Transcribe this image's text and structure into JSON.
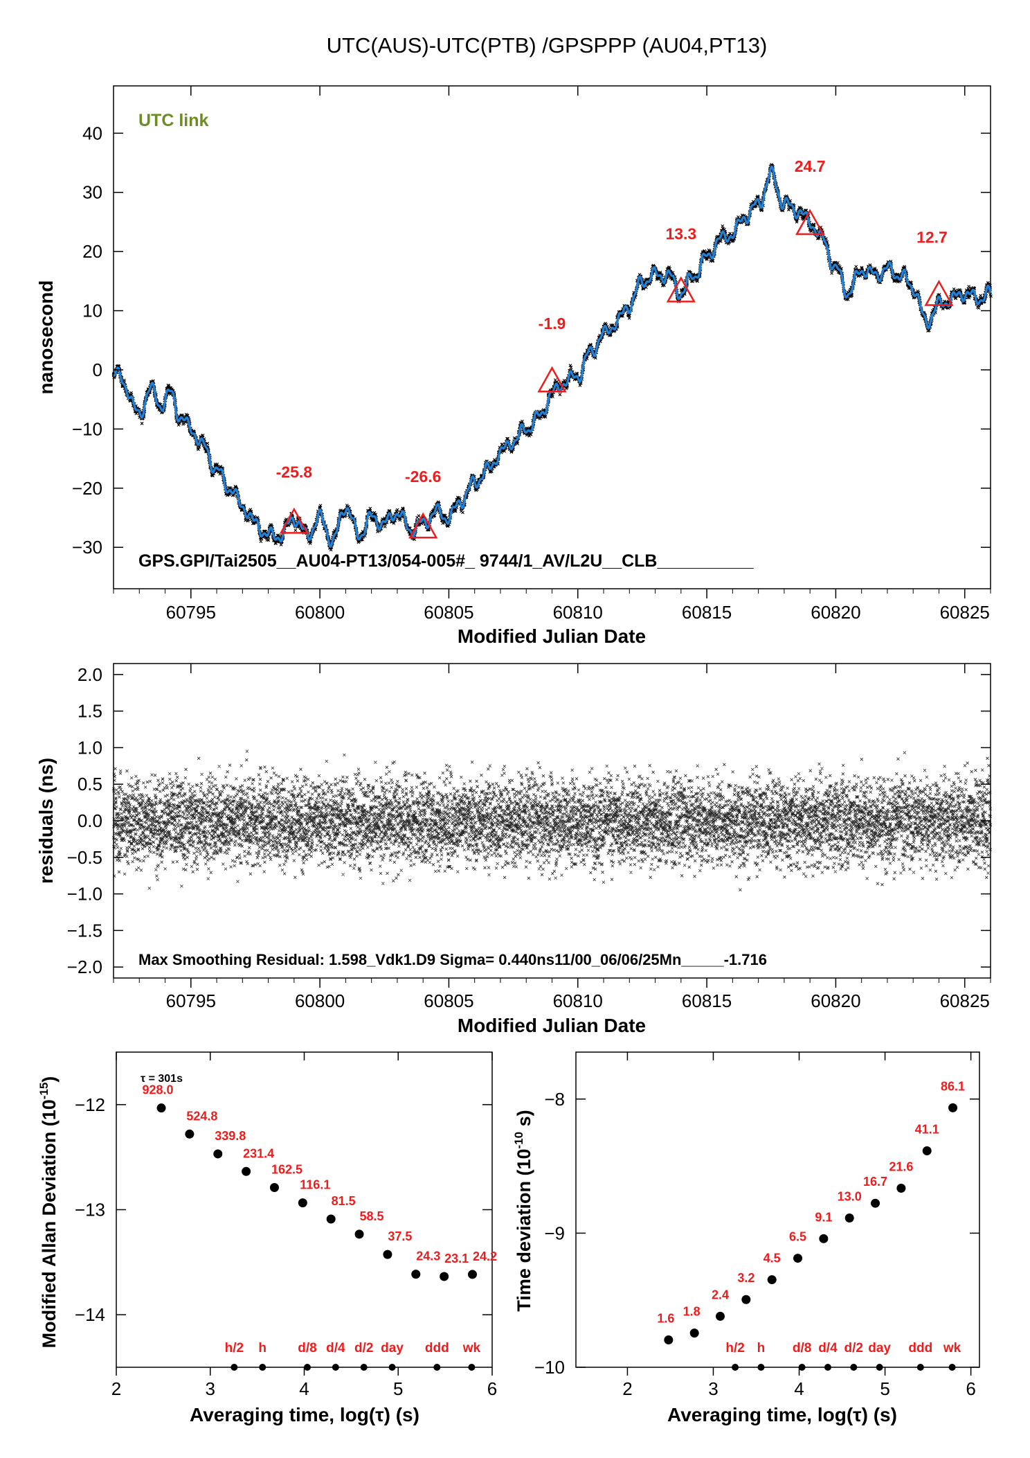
{
  "page_title": "UTC(AUS)-UTC(PTB)  /GPSPPP  (AU04,PT13)",
  "colors": {
    "fit_line": "#1f82d8",
    "raw_points": "#000000",
    "highlight": "#ee1c1c",
    "link_label": "#6a8e22"
  },
  "chart_data": [
    {
      "type": "line",
      "panel": "time-series",
      "xlabel": "Modified Julian Date",
      "ylabel": "nanosecond",
      "xlim": [
        60792,
        60826
      ],
      "ylim": [
        -37,
        48
      ],
      "xticks": [
        60795,
        60800,
        60805,
        60810,
        60815,
        60820,
        60825
      ],
      "yticks": [
        -30,
        -20,
        -10,
        0,
        10,
        20,
        30,
        40
      ],
      "link_label": "UTC link",
      "footer_text": "GPS.GPI/Tai2505__AU04-PT13/054-005#_  9744/1_AV/L2U__CLB__________",
      "series": [
        {
          "x": [
            60792.0,
            60792.5,
            60793.0,
            60793.4,
            60793.8,
            60794.2,
            60794.6,
            60795.0,
            60795.5,
            60796.0,
            60796.5,
            60797.0,
            60797.5,
            60798.0,
            60798.5,
            60799.0,
            60799.5,
            60800.0,
            60800.5,
            60801.0,
            60801.5,
            60802.0,
            60802.5,
            60803.0,
            60803.5,
            60804.0,
            60804.5,
            60805.0,
            60805.5,
            60806.0,
            60806.5,
            60807.0,
            60807.5,
            60808.0,
            60808.5,
            60809.0,
            60809.5,
            60810.0,
            60810.5,
            60811.0,
            60811.5,
            60812.0,
            60812.5,
            60813.0,
            60813.5,
            60814.0,
            60814.5,
            60815.0,
            60815.5,
            60816.0,
            60816.5,
            60817.0,
            60817.5,
            60818.0,
            60818.5,
            60819.0,
            60819.5,
            60820.0,
            60820.5,
            60821.0,
            60821.5,
            60822.0,
            60822.5,
            60823.0,
            60823.5,
            60824.0,
            60824.5,
            60825.0,
            60825.5,
            60826.0
          ],
          "y": [
            0,
            -3,
            -8,
            -3,
            -6,
            -4,
            -8,
            -10,
            -13,
            -17,
            -20,
            -23,
            -26,
            -28,
            -28,
            -25,
            -28,
            -25,
            -29,
            -23,
            -28,
            -25,
            -26,
            -24,
            -27,
            -26,
            -24,
            -25,
            -22,
            -19,
            -17,
            -14,
            -12,
            -10,
            -8,
            -4,
            -2,
            -1,
            3,
            6,
            8,
            11,
            15,
            16,
            16,
            13,
            16,
            19,
            22,
            23,
            26,
            28,
            33,
            28,
            27,
            25,
            22,
            17,
            13,
            17,
            16,
            17,
            16,
            14,
            8,
            11,
            12,
            13,
            12,
            13
          ]
        }
      ],
      "markers": [
        {
          "x": 60799,
          "y": -25.8,
          "label": "-25.8"
        },
        {
          "x": 60804,
          "y": -26.6,
          "label": "-26.6"
        },
        {
          "x": 60809,
          "y": -1.9,
          "label": "-1.9"
        },
        {
          "x": 60814,
          "y": 13.3,
          "label": "13.3"
        },
        {
          "x": 60819,
          "y": 24.7,
          "label": "24.7"
        },
        {
          "x": 60824,
          "y": 12.7,
          "label": "12.7"
        }
      ]
    },
    {
      "type": "scatter",
      "panel": "residuals",
      "xlabel": "Modified Julian Date",
      "ylabel": "residuals (ns)",
      "xlim": [
        60792,
        60826
      ],
      "ylim": [
        -2.15,
        2.15
      ],
      "xticks": [
        60795,
        60800,
        60805,
        60810,
        60815,
        60820,
        60825
      ],
      "yticks": [
        -2.0,
        -1.5,
        -1.0,
        -0.5,
        0.0,
        0.5,
        1.0,
        1.5,
        2.0
      ],
      "footer_text": "Max Smoothing Residual: 1.598_Vdk1.D9  Sigma= 0.440ns11/00_06/06/25Mn_____-1.716",
      "sigma_ns": 0.44,
      "max_residual_ns": 1.598
    },
    {
      "type": "scatter",
      "panel": "mod-allan-deviation",
      "xlabel": "Averaging time, log(τ) (s)",
      "ylabel": "Modified Allan Deviation (10-15)",
      "xlim": [
        2,
        6
      ],
      "ylim": [
        -14.5,
        -11.5
      ],
      "xticks": [
        2,
        3,
        4,
        5,
        6
      ],
      "yticks": [
        -14,
        -13,
        -12
      ],
      "tau_note": "τ = 301s",
      "x": [
        2.479,
        2.78,
        3.081,
        3.382,
        3.683,
        3.984,
        4.285,
        4.586,
        4.887,
        5.188,
        5.489,
        5.79
      ],
      "y": [
        -12.032,
        -12.28,
        -12.469,
        -12.636,
        -12.789,
        -12.935,
        -13.089,
        -13.233,
        -13.426,
        -13.614,
        -13.636,
        -13.616
      ],
      "labels": [
        "928.0",
        "524.8",
        "339.8",
        "231.4",
        "162.5",
        "116.1",
        "81.5",
        "58.5",
        "37.5",
        "24.3",
        "23.1",
        "24.2"
      ],
      "markers": [
        {
          "x": 3.255,
          "label": "h/2"
        },
        {
          "x": 3.556,
          "label": "h"
        },
        {
          "x": 4.033,
          "label": "d/8"
        },
        {
          "x": 4.334,
          "label": "d/4"
        },
        {
          "x": 4.635,
          "label": "d/2"
        },
        {
          "x": 4.936,
          "label": "day"
        },
        {
          "x": 5.413,
          "label": "ddd"
        },
        {
          "x": 5.782,
          "label": "wk"
        }
      ]
    },
    {
      "type": "scatter",
      "panel": "time-deviation",
      "xlabel": "Averaging time, log(τ) (s)",
      "ylabel": "Time deviation (10-10 s)",
      "xlim": [
        1.4,
        6.1
      ],
      "ylim": [
        -10.0,
        -7.65
      ],
      "xticks": [
        2,
        3,
        4,
        5,
        6
      ],
      "yticks": [
        -10,
        -9,
        -8
      ],
      "x": [
        2.479,
        2.78,
        3.081,
        3.382,
        3.683,
        3.984,
        4.285,
        4.586,
        4.887,
        5.188,
        5.489,
        5.79
      ],
      "y": [
        -9.796,
        -9.745,
        -9.62,
        -9.495,
        -9.347,
        -9.187,
        -9.041,
        -8.887,
        -8.777,
        -8.665,
        -8.386,
        -8.065
      ],
      "labels": [
        "1.6",
        "1.8",
        "2.4",
        "3.2",
        "4.5",
        "6.5",
        "9.1",
        "13.0",
        "16.7",
        "21.6",
        "41.1",
        "86.1"
      ],
      "markers": [
        {
          "x": 3.255,
          "label": "h/2"
        },
        {
          "x": 3.556,
          "label": "h"
        },
        {
          "x": 4.033,
          "label": "d/8"
        },
        {
          "x": 4.334,
          "label": "d/4"
        },
        {
          "x": 4.635,
          "label": "d/2"
        },
        {
          "x": 4.936,
          "label": "day"
        },
        {
          "x": 5.413,
          "label": "ddd"
        },
        {
          "x": 5.782,
          "label": "wk"
        }
      ]
    }
  ]
}
